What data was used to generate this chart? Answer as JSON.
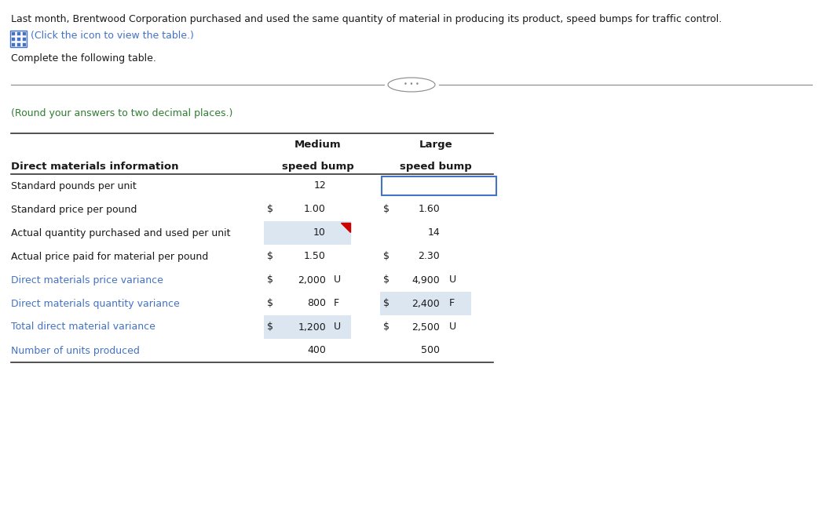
{
  "title_line1": "Last month, Brentwood Corporation purchased and used the same quantity of material in producing its product, speed bumps for traffic control.",
  "title_line2": "(Click the icon to view the table.)",
  "instruction": "Complete the following table.",
  "round_note": "(Round your answers to two decimal places.)",
  "col_header1": "Medium",
  "col_header2": "Large",
  "col_subheader1": "speed bump",
  "col_subheader2": "speed bump",
  "row_label_col": "Direct materials information",
  "rows": [
    {
      "label": "Standard pounds per unit",
      "med_dollar": false,
      "med_value": "12",
      "med_suffix": "",
      "large_dollar": false,
      "large_value": "",
      "large_suffix": "",
      "med_highlight": false,
      "large_highlight": false,
      "large_box": true,
      "label_blue": false
    },
    {
      "label": "Standard price per pound",
      "med_dollar": true,
      "med_value": "1.00",
      "med_suffix": "",
      "large_dollar": true,
      "large_value": "1.60",
      "large_suffix": "",
      "med_highlight": false,
      "large_highlight": false,
      "large_box": false,
      "label_blue": false
    },
    {
      "label": "Actual quantity purchased and used per unit",
      "med_dollar": false,
      "med_value": "10",
      "med_suffix": "",
      "large_dollar": false,
      "large_value": "14",
      "large_suffix": "",
      "med_highlight": true,
      "large_highlight": false,
      "large_box": false,
      "label_blue": false,
      "red_corner": true
    },
    {
      "label": "Actual price paid for material per pound",
      "med_dollar": true,
      "med_value": "1.50",
      "med_suffix": "",
      "large_dollar": true,
      "large_value": "2.30",
      "large_suffix": "",
      "med_highlight": false,
      "large_highlight": false,
      "large_box": false,
      "label_blue": false
    },
    {
      "label": "Direct materials price variance",
      "med_dollar": true,
      "med_value": "2,000",
      "med_suffix": "U",
      "large_dollar": true,
      "large_value": "4,900",
      "large_suffix": "U",
      "med_highlight": false,
      "large_highlight": false,
      "large_box": false,
      "label_blue": true
    },
    {
      "label": "Direct materials quantity variance",
      "med_dollar": true,
      "med_value": "800",
      "med_suffix": "F",
      "large_dollar": true,
      "large_value": "2,400",
      "large_suffix": "F",
      "med_highlight": false,
      "large_highlight": true,
      "large_box": false,
      "label_blue": true
    },
    {
      "label": "Total direct material variance",
      "med_dollar": true,
      "med_value": "1,200",
      "med_suffix": "U",
      "large_dollar": true,
      "large_value": "2,500",
      "large_suffix": "U",
      "med_highlight": true,
      "large_highlight": false,
      "large_box": false,
      "label_blue": true
    },
    {
      "label": "Number of units produced",
      "med_dollar": false,
      "med_value": "400",
      "med_suffix": "",
      "large_dollar": false,
      "large_value": "500",
      "large_suffix": "",
      "med_highlight": false,
      "large_highlight": false,
      "large_box": false,
      "label_blue": true
    }
  ],
  "highlight_color": "#dce6f1",
  "box_border_color": "#4472c4",
  "text_color_blue": "#4472c4",
  "text_color_black": "#1a1a1a",
  "text_color_dark": "#1a1a1a",
  "bg_color": "#ffffff",
  "green_color": "#2e7d32",
  "line_color": "#888888",
  "separator_dots": "• • •",
  "icon_color": "#4472c4",
  "red_corner_color": "#cc0000",
  "figwidth": 10.48,
  "figheight": 6.63,
  "dpi": 100
}
